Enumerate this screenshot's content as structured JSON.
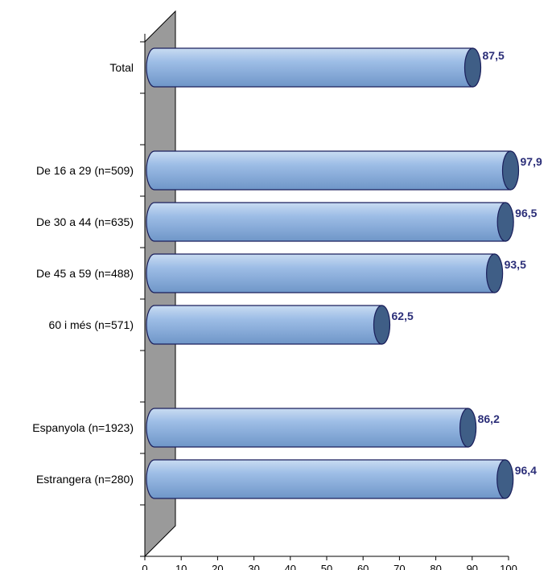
{
  "chart_data": {
    "type": "bar",
    "orientation": "horizontal",
    "categories": [
      "Total",
      "",
      "De 16 a 29 (n=509)",
      "De 30 a 44 (n=635)",
      "De 45 a 59 (n=488)",
      "60 i més (n=571)",
      "",
      "Espanyola (n=1923)",
      "Estrangera (n=280)",
      ""
    ],
    "values": [
      87.5,
      null,
      97.9,
      96.5,
      93.5,
      62.5,
      null,
      86.2,
      96.4,
      null
    ],
    "value_labels": [
      "87,5",
      "",
      "97,9",
      "96,5",
      "93,5",
      "62,5",
      "",
      "86,2",
      "96,4",
      ""
    ],
    "xlim": [
      0,
      100
    ],
    "x_ticks": [
      "0",
      "10",
      "20",
      "30",
      "40",
      "50",
      "60",
      "70",
      "80",
      "90",
      "100"
    ],
    "title": "",
    "xlabel": "",
    "ylabel": "",
    "grid": false,
    "legend": "none",
    "style": "3d-cylinder"
  },
  "colors": {
    "bar_light": "#c9dcf2",
    "bar_mid": "#9dbde6",
    "bar_dark": "#6f96c8",
    "bar_outline": "#1a1f5c",
    "bar_cap": "#3f5e86",
    "wall": "#9a9a9a",
    "value_text": "#2b2e78",
    "axis": "#000000"
  }
}
